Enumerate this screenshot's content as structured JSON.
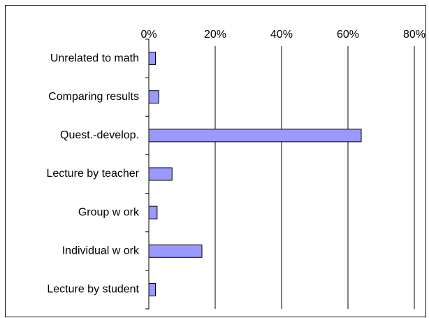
{
  "chart_data": {
    "type": "bar",
    "orientation": "horizontal",
    "categories": [
      "Unrelated to math",
      "Comparing results",
      "Quest.-develop.",
      "Lecture by teacher",
      "Group w ork",
      "Individual w ork",
      "Lecture by student"
    ],
    "values": [
      2,
      3,
      64,
      7,
      2.5,
      16,
      2
    ],
    "color": "#9999ff",
    "xlim": [
      0,
      80
    ],
    "xticks": [
      {
        "value": 0,
        "label": "0%"
      },
      {
        "value": 20,
        "label": "20%"
      },
      {
        "value": 40,
        "label": "40%"
      },
      {
        "value": 60,
        "label": "60%"
      },
      {
        "value": 80,
        "label": "80%"
      }
    ],
    "grid": true
  }
}
